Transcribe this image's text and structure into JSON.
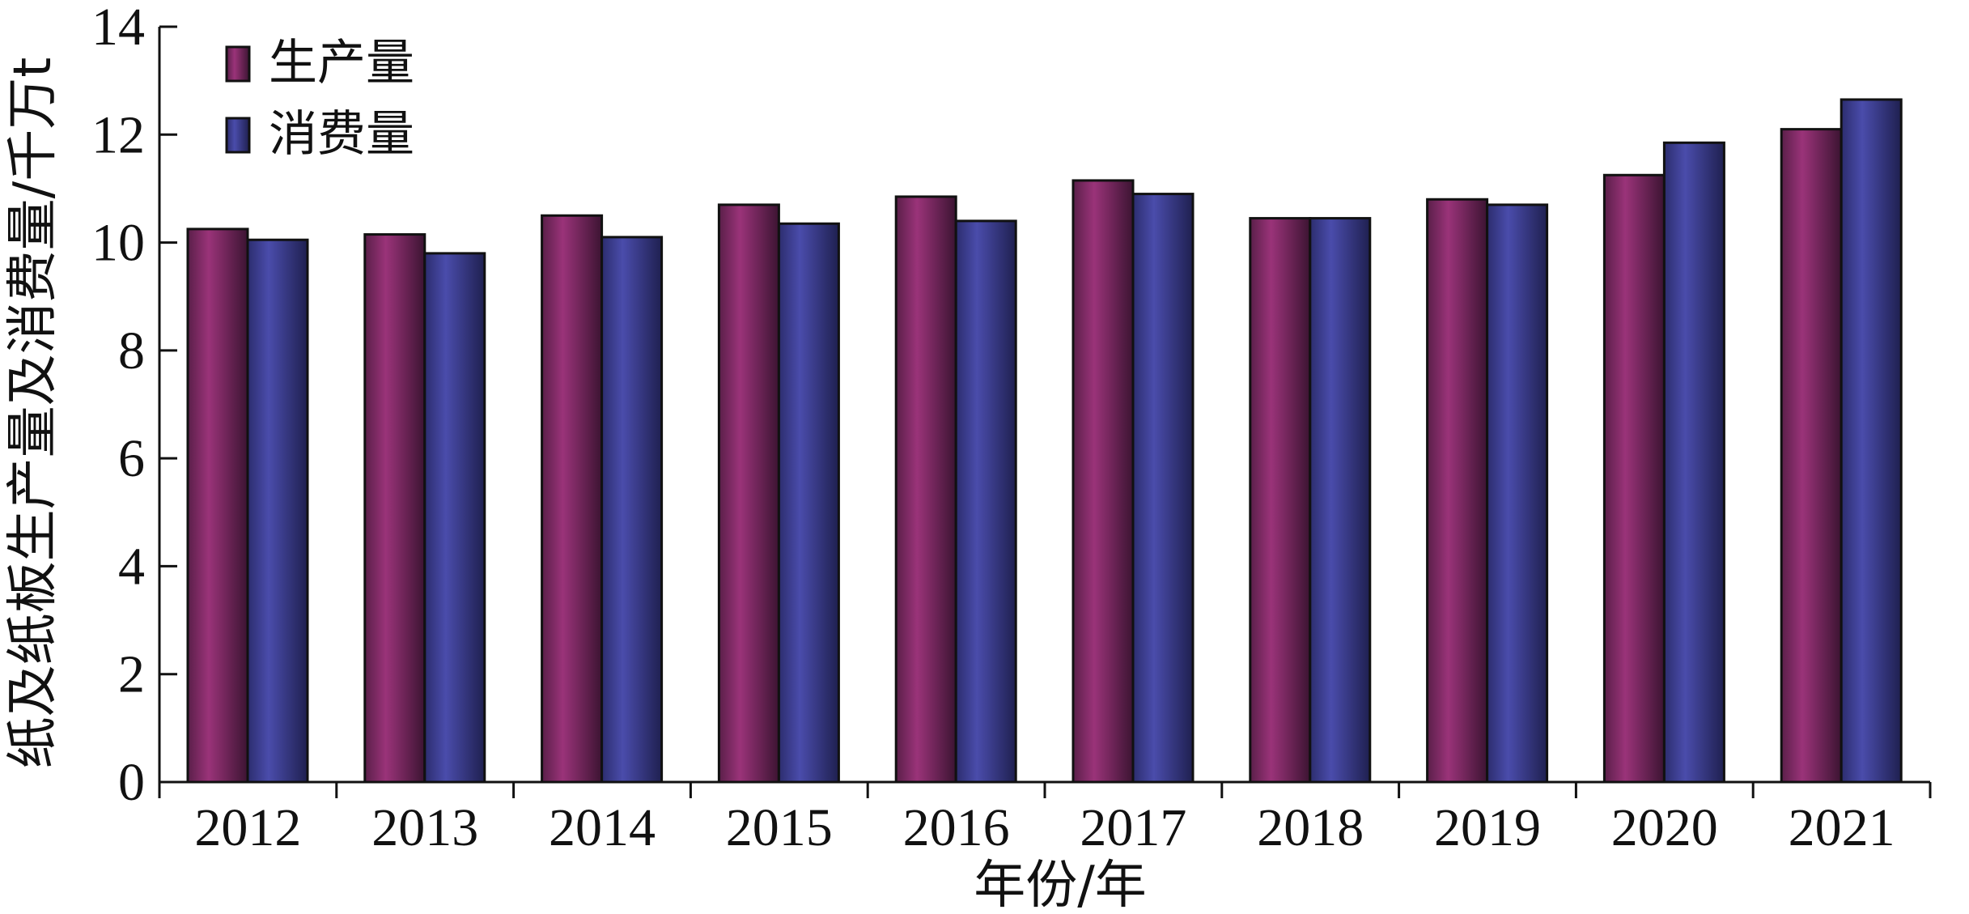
{
  "chart_data": {
    "type": "bar",
    "categories": [
      "2012",
      "2013",
      "2014",
      "2015",
      "2016",
      "2017",
      "2018",
      "2019",
      "2020",
      "2021"
    ],
    "series": [
      {
        "name": "生产量",
        "color": "#8b2d6e",
        "values": [
          10.25,
          10.15,
          10.5,
          10.7,
          10.85,
          11.15,
          10.45,
          10.8,
          11.25,
          12.1
        ]
      },
      {
        "name": "消费量",
        "color": "#3e3f94",
        "values": [
          10.05,
          9.8,
          10.1,
          10.35,
          10.4,
          10.9,
          10.45,
          10.7,
          11.85,
          12.65
        ]
      }
    ],
    "xlabel": "年份/年",
    "ylabel": "纸及纸板生产量及消费量/千万t",
    "ylim": [
      0,
      14
    ],
    "yticks": [
      "0",
      "2",
      "4",
      "6",
      "8",
      "10",
      "12",
      "14"
    ],
    "grid": false,
    "legend_position": "top-left"
  }
}
